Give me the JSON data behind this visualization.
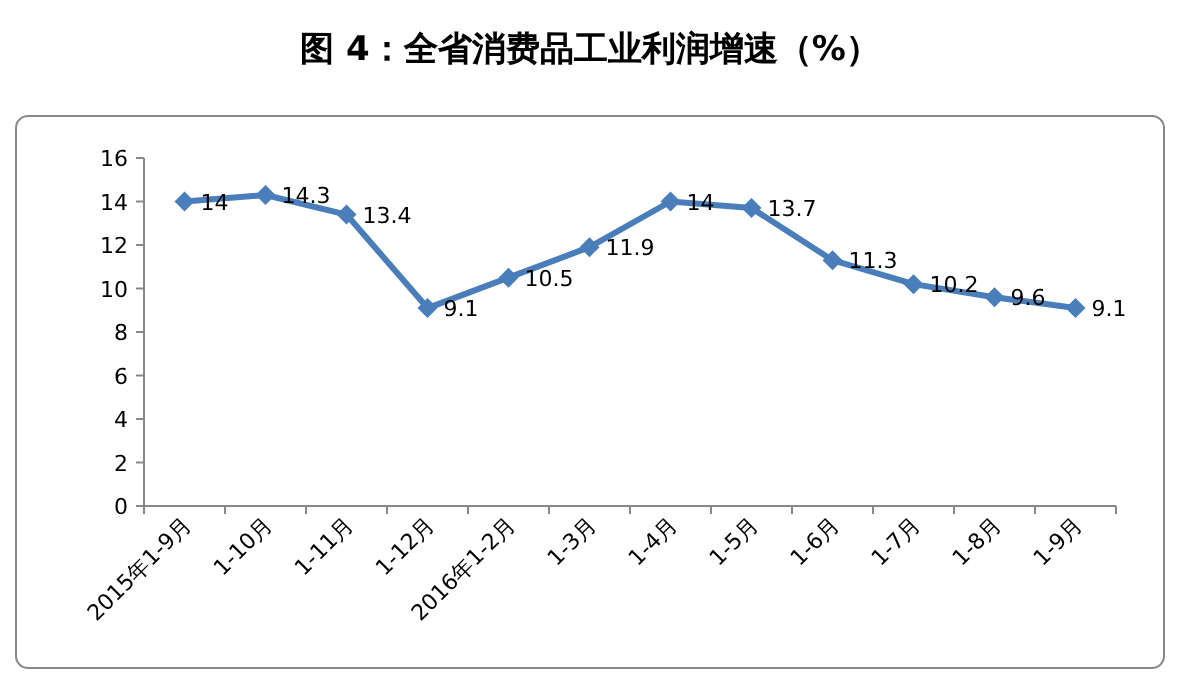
{
  "chart_data": {
    "type": "line",
    "title": "图 4：全省消费品工业利润增速（%）",
    "categories": [
      "2015年1-9月",
      "1-10月",
      "1-11月",
      "1-12月",
      "2016年1-2月",
      "1-3月",
      "1-4月",
      "1-5月",
      "1-6月",
      "1-7月",
      "1-8月",
      "1-9月"
    ],
    "values": [
      14,
      14.3,
      13.4,
      9.1,
      10.5,
      11.9,
      14,
      13.7,
      11.3,
      10.2,
      9.6,
      9.1
    ],
    "color": "#4a7ebb",
    "marker": "diamond",
    "ylim": [
      0,
      16
    ],
    "yticks": [
      0,
      2,
      4,
      6,
      8,
      10,
      12,
      14,
      16
    ],
    "grid": false,
    "data_labels": true
  }
}
